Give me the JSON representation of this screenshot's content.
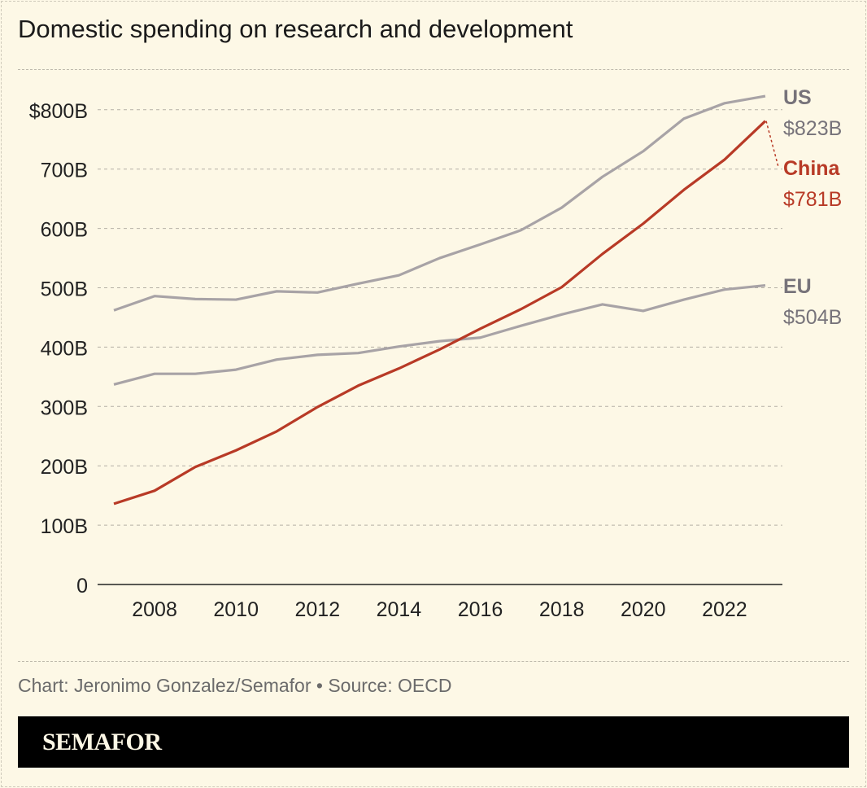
{
  "title": "Domestic spending on research and development",
  "credit": "Chart: Jeronimo Gonzalez/Semafor • Source: OECD",
  "brand": "SEMAFOR",
  "colors": {
    "background": "#fdf8e6",
    "us": "#a8a3a6",
    "eu": "#a8a3a6",
    "china": "#b83a26",
    "label_gray": "#77737a"
  },
  "chart_data": {
    "type": "line",
    "title": "Domestic spending on research and development",
    "x": [
      2007,
      2008,
      2009,
      2010,
      2011,
      2012,
      2013,
      2014,
      2015,
      2016,
      2017,
      2018,
      2019,
      2020,
      2021,
      2022,
      2023
    ],
    "xticks": [
      "2008",
      "2010",
      "2012",
      "2014",
      "2016",
      "2018",
      "2020",
      "2022"
    ],
    "yticks": [
      "0",
      "100B",
      "200B",
      "300B",
      "400B",
      "500B",
      "600B",
      "700B",
      "$800B"
    ],
    "ylim": [
      0,
      800
    ],
    "grid": true,
    "legend": "end-labels",
    "series": [
      {
        "name": "US",
        "end_label": "$823B",
        "values": [
          462,
          486,
          481,
          480,
          494,
          492,
          507,
          521,
          550,
          573,
          597,
          635,
          687,
          730,
          785,
          811,
          823
        ]
      },
      {
        "name": "China",
        "end_label": "$781B",
        "values": [
          136,
          158,
          198,
          226,
          258,
          299,
          335,
          364,
          396,
          431,
          464,
          501,
          557,
          608,
          665,
          716,
          781
        ]
      },
      {
        "name": "EU",
        "end_label": "$504B",
        "values": [
          337,
          355,
          355,
          362,
          379,
          387,
          390,
          401,
          410,
          416,
          436,
          455,
          472,
          461,
          480,
          497,
          504
        ]
      }
    ]
  }
}
